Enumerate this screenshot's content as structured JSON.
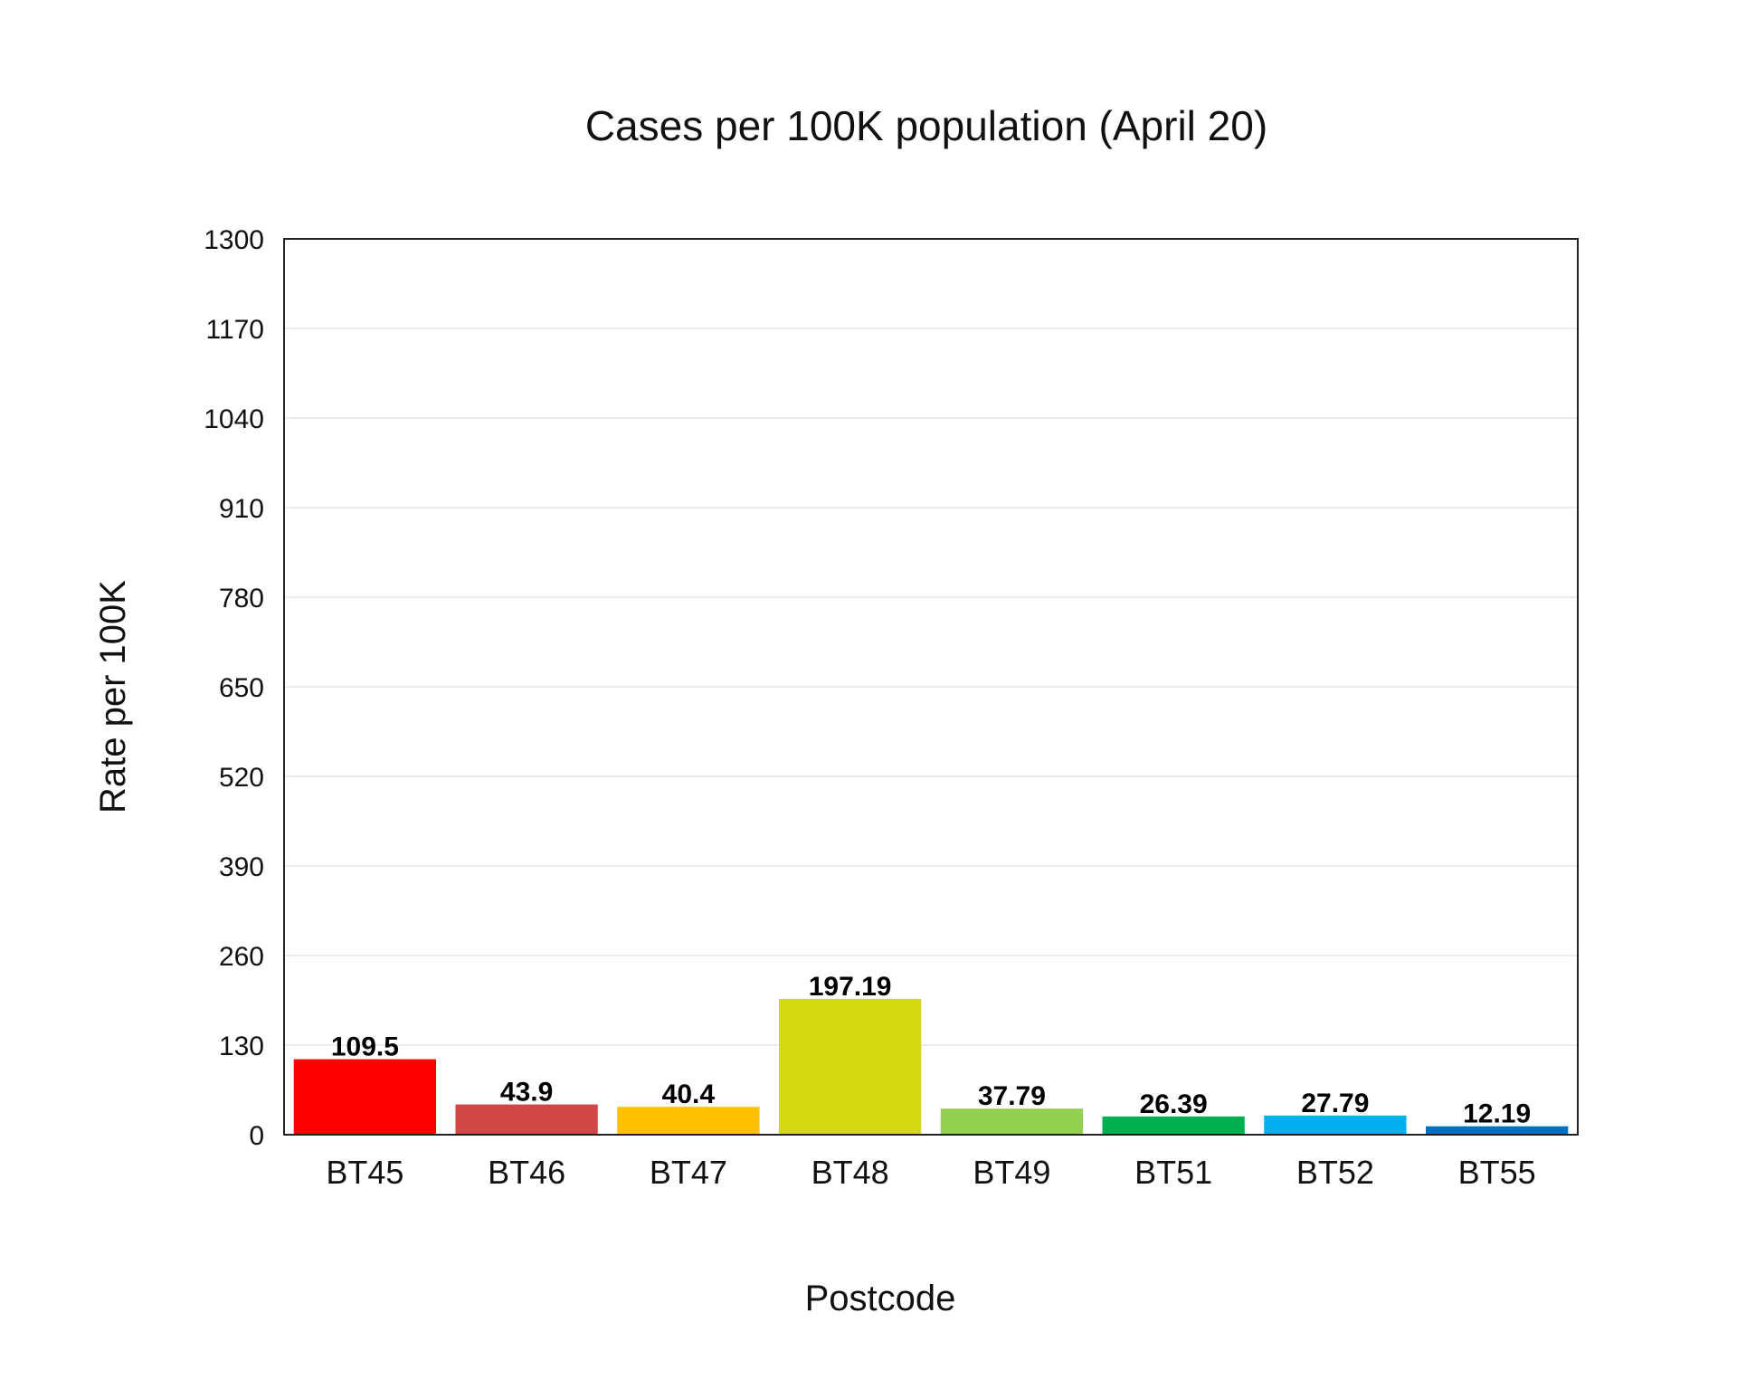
{
  "chart_data": {
    "type": "bar",
    "title": "Cases per 100K population (April 20)",
    "xlabel": "Postcode",
    "ylabel": "Rate per 100K",
    "categories": [
      "BT45",
      "BT46",
      "BT47",
      "BT48",
      "BT49",
      "BT51",
      "BT52",
      "BT55"
    ],
    "values": [
      109.5,
      43.9,
      40.4,
      197.19,
      37.79,
      26.39,
      27.79,
      12.19
    ],
    "data_labels": [
      "109.5",
      "43.9",
      "40.4",
      "197.19",
      "37.79",
      "26.39",
      "27.79",
      "12.19"
    ],
    "colors": [
      "#ff0000",
      "#d14747",
      "#ffc000",
      "#d4d911",
      "#92d050",
      "#00b050",
      "#00b0f0",
      "#0070c0"
    ],
    "ylim": [
      0,
      1300
    ],
    "yticks": [
      0,
      130,
      260,
      390,
      520,
      650,
      780,
      910,
      1040,
      1170,
      1300
    ],
    "grid": true,
    "legend": "none"
  }
}
